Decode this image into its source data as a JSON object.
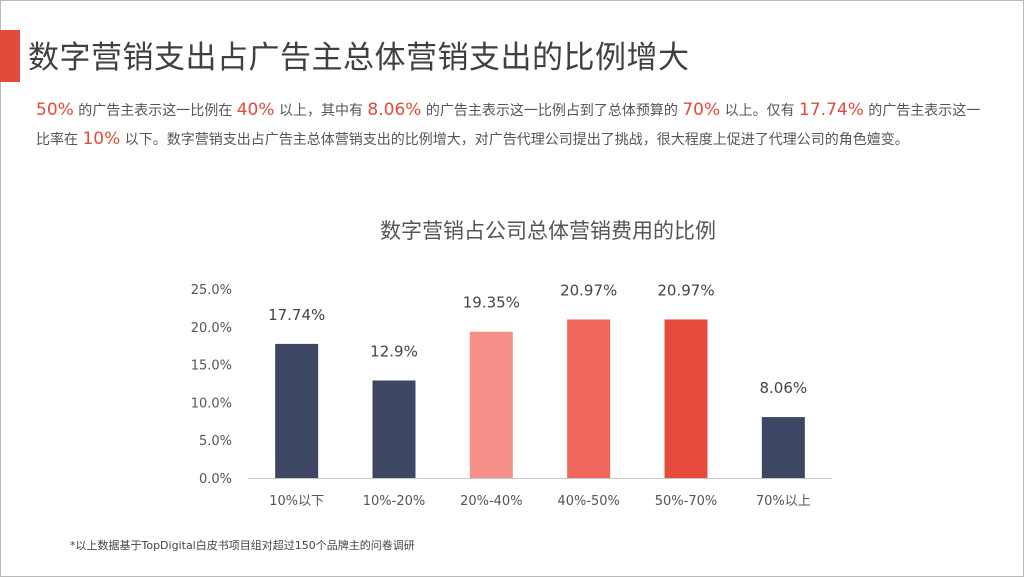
{
  "slide": {
    "title": "数字营销支出占广告主总体营销支出的比例增大",
    "paragraph": [
      {
        "t": "50%",
        "hl": true
      },
      {
        "t": " 的广告主表示这一比例在 ",
        "hl": false
      },
      {
        "t": "40%",
        "hl": true
      },
      {
        "t": " 以上，其中有 ",
        "hl": false
      },
      {
        "t": "8.06%",
        "hl": true
      },
      {
        "t": " 的广告主表示这一比例占到了总体预算的 ",
        "hl": false
      },
      {
        "t": "70%",
        "hl": true
      },
      {
        "t": " 以上。仅有 ",
        "hl": false
      },
      {
        "t": "17.74%",
        "hl": true
      },
      {
        "t": " 的广告主表示这一比率在 ",
        "hl": false
      },
      {
        "t": "10%",
        "hl": true
      },
      {
        "t": " 以下。数字营销支出占广告主总体营销支出的比例增大，对广告代理公司提出了挑战，很大程度上促进了代理公司的角色嬗变。",
        "hl": false
      }
    ],
    "footnote": "*以上数据基于TopDigital白皮书项目组对超过150个品牌主的问卷调研"
  },
  "chart_data": {
    "type": "bar",
    "title": "数字营销占公司总体营销费用的比例",
    "categories": [
      "10%以下",
      "10%-20%",
      "20%-40%",
      "40%-50%",
      "50%-70%",
      "70%以上"
    ],
    "values": [
      17.74,
      12.9,
      19.35,
      20.97,
      20.97,
      8.06
    ],
    "data_labels": [
      "17.74%",
      "12.9%",
      "19.35%",
      "20.97%",
      "20.97%",
      "8.06%"
    ],
    "bar_colors": [
      "#3d4663",
      "#3d4663",
      "#f68f88",
      "#f0665a",
      "#e64a3b",
      "#3d4663"
    ],
    "yticks": [
      "0.0%",
      "5.0%",
      "10.0%",
      "15.0%",
      "20.0%",
      "25.0%"
    ],
    "ylim": [
      0,
      25
    ],
    "xlabel": "",
    "ylabel": "",
    "grid": false
  },
  "colors": {
    "accent": "#e24b3b",
    "navy": "#3d4663"
  }
}
